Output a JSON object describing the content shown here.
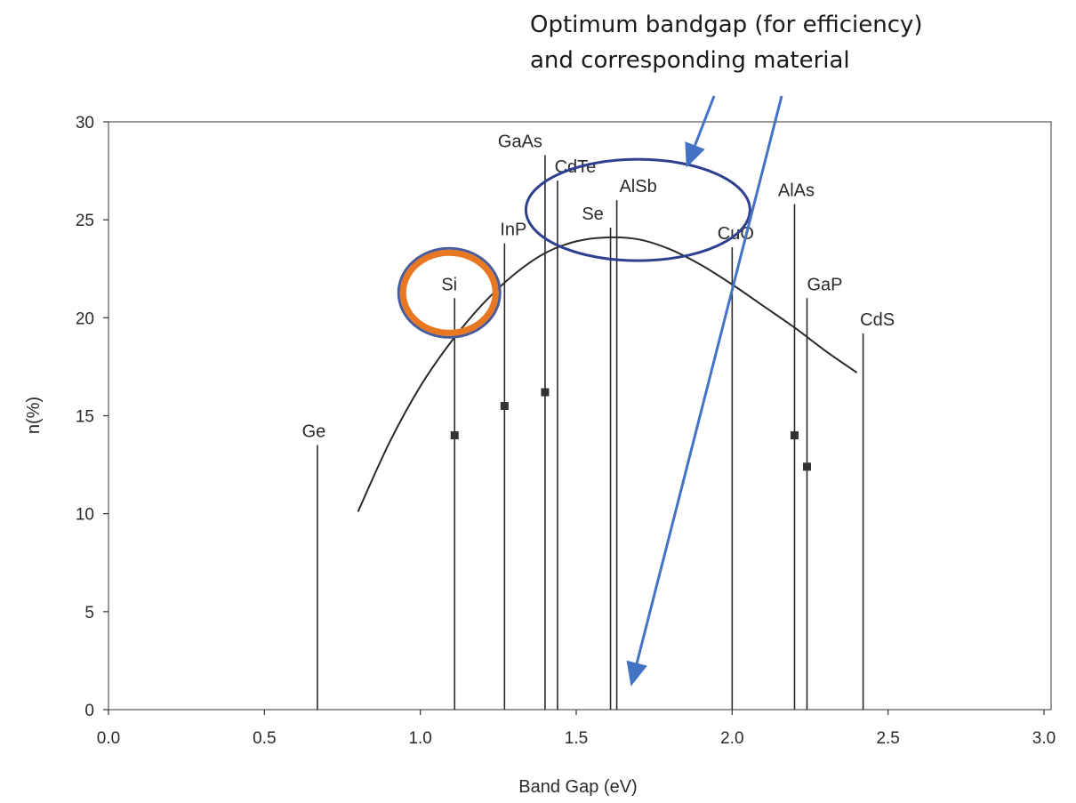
{
  "annotation": {
    "line1": "Optimum bandgap (for efficiency)",
    "line2": "and corresponding material"
  },
  "chart_data": {
    "type": "line",
    "title": "",
    "xlabel": "Band Gap (eV)",
    "ylabel": "n(%)",
    "xlim": [
      0,
      3.0
    ],
    "ylim": [
      0,
      30
    ],
    "x_ticks": [
      "0.0",
      "0.5",
      "1.0",
      "1.5",
      "2.0",
      "2.5",
      "3.0"
    ],
    "y_ticks": [
      "0",
      "5",
      "10",
      "15",
      "20",
      "25",
      "30"
    ],
    "curve": {
      "x": [
        0.8,
        0.9,
        1.0,
        1.1,
        1.2,
        1.3,
        1.4,
        1.5,
        1.6,
        1.7,
        1.8,
        1.9,
        2.0,
        2.1,
        2.2,
        2.3,
        2.4
      ],
      "y": [
        10.1,
        13.6,
        16.5,
        18.8,
        20.7,
        22.2,
        23.3,
        23.9,
        24.1,
        24.0,
        23.5,
        22.7,
        21.7,
        20.6,
        19.5,
        18.3,
        17.2
      ]
    },
    "materials": [
      {
        "name": "Ge",
        "bandgap": 0.67,
        "max_efficiency": 13.5
      },
      {
        "name": "Si",
        "bandgap": 1.11,
        "max_efficiency": 21.0,
        "measured": 14.0
      },
      {
        "name": "InP",
        "bandgap": 1.27,
        "max_efficiency": 23.8,
        "measured": 15.5
      },
      {
        "name": "GaAs",
        "bandgap": 1.4,
        "max_efficiency": 28.3,
        "measured": 16.2
      },
      {
        "name": "CdTe",
        "bandgap": 1.44,
        "max_efficiency": 27.0
      },
      {
        "name": "Se",
        "bandgap": 1.61,
        "max_efficiency": 24.6
      },
      {
        "name": "AlSb",
        "bandgap": 1.63,
        "max_efficiency": 26.0
      },
      {
        "name": "CuO",
        "bandgap": 2.0,
        "max_efficiency": 23.6
      },
      {
        "name": "AlAs",
        "bandgap": 2.2,
        "max_efficiency": 25.8,
        "measured": 14.0
      },
      {
        "name": "GaP",
        "bandgap": 2.24,
        "max_efficiency": 21.0,
        "measured": 12.4
      },
      {
        "name": "CdS",
        "bandgap": 2.42,
        "max_efficiency": 19.2
      }
    ],
    "grid": false,
    "highlights": {
      "silicon_circle_color": "#e87722",
      "optimum_ellipse_color": "#2e3f8f",
      "arrow_color": "#4472c4"
    }
  }
}
